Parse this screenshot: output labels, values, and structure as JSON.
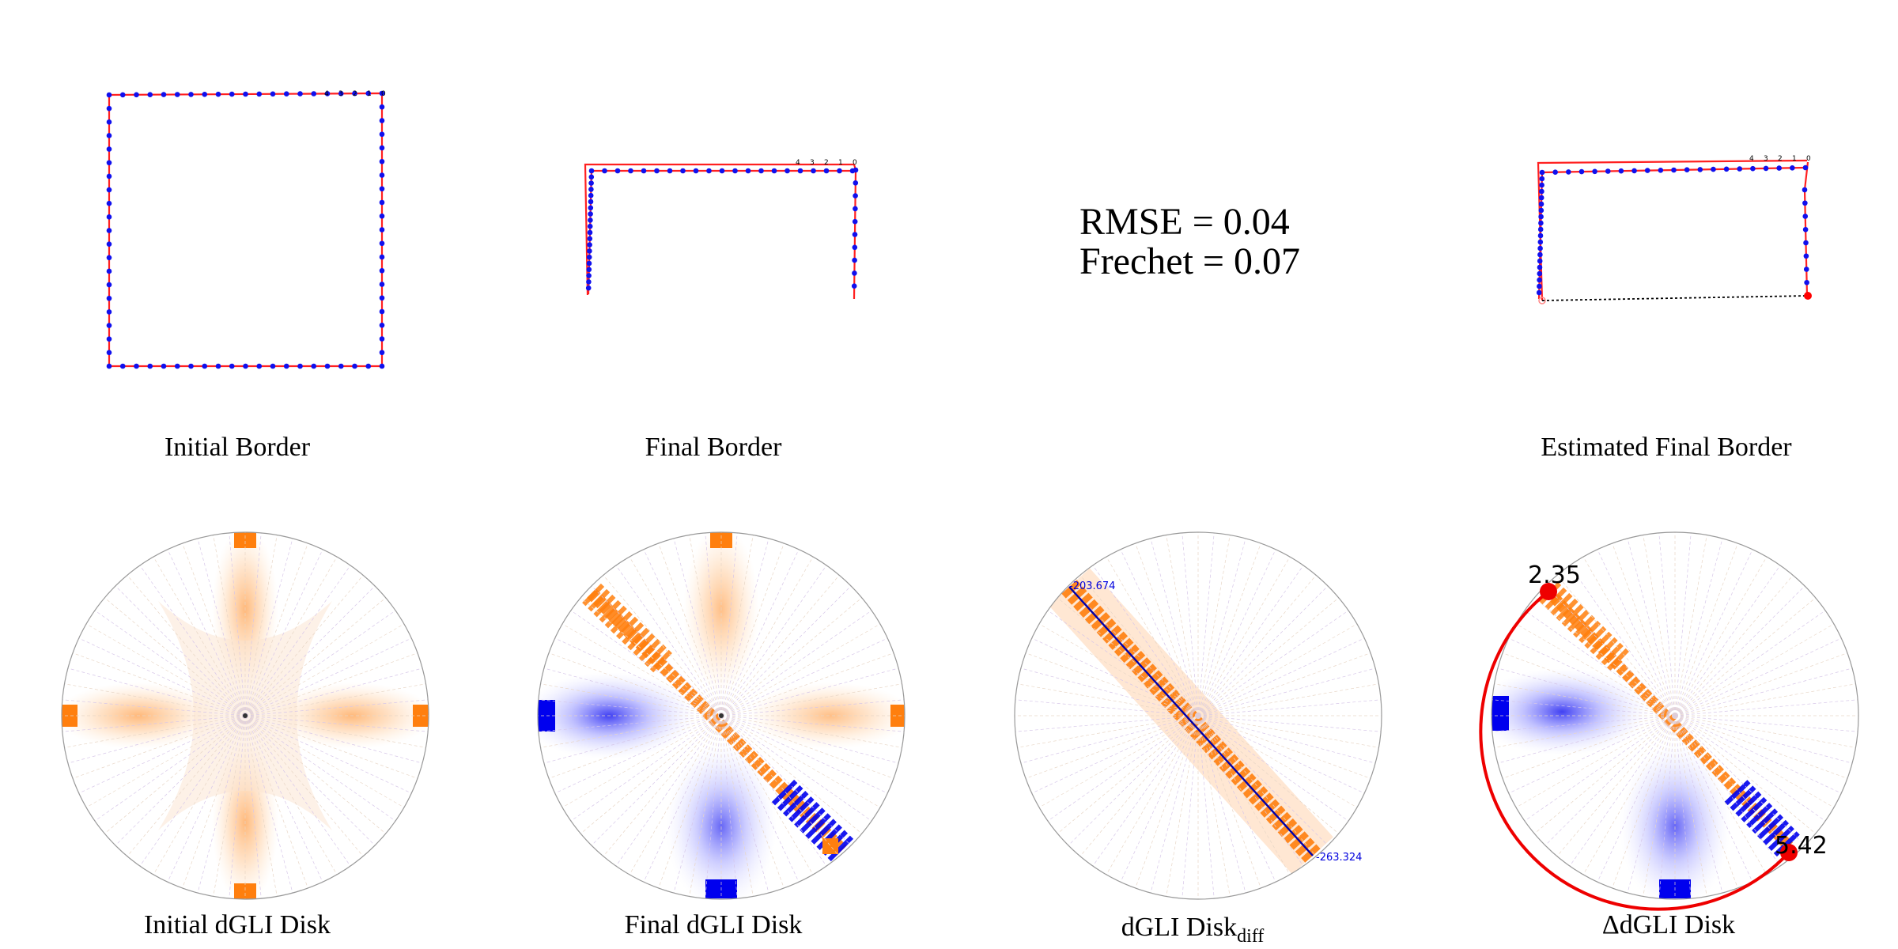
{
  "labels": {
    "initial_border": "Initial Border",
    "final_border": "Final Border",
    "estimated_final_border": "Estimated Final Border",
    "initial_disk": "Initial dGLI Disk",
    "final_disk": "Final dGLI Disk",
    "diff_disk_main": "dGLI Disk",
    "diff_disk_sub": "diff",
    "delta_disk": "ΔdGLI Disk"
  },
  "metrics": {
    "rmse": "RMSE = 0.04",
    "frechet": "Frechet = 0.07"
  },
  "vertex_labels": [
    "4",
    "3",
    "2",
    "1",
    "0"
  ],
  "diff_disk_values": {
    "start": "-203.674",
    "end": "-263.324"
  },
  "delta_disk_values": {
    "start": "2.35",
    "end": "5.42"
  },
  "colors": {
    "polyline_red": "#ff2020",
    "vertex_blue": "#1010ee",
    "heat_orange": "#ff7f0e",
    "heat_blue": "#0000ee",
    "disk_outline": "#888888"
  }
}
